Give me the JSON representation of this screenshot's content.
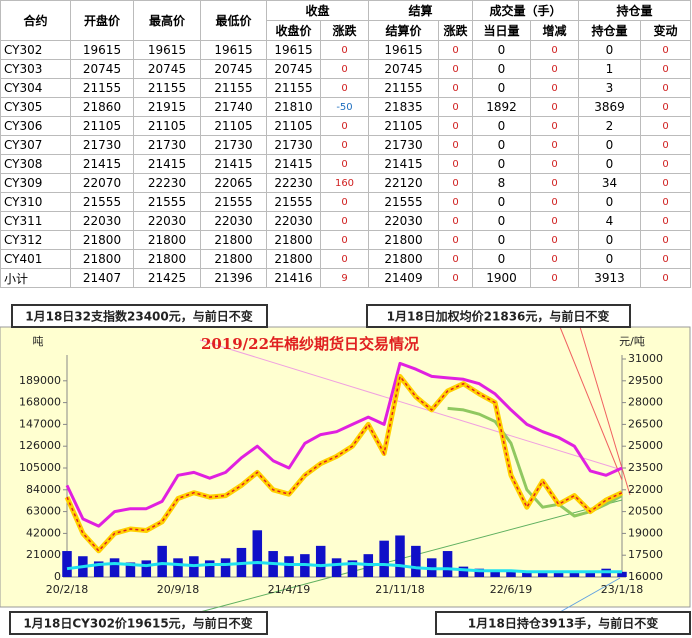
{
  "table": {
    "header": [
      "合约",
      "开盘价",
      "最高价",
      "最低价",
      "收盘",
      "结算",
      "成交量（手）",
      "持仓量"
    ],
    "subheader": [
      "收盘价",
      "涨跌",
      "结算价",
      "涨跌",
      "当日量",
      "增减",
      "持仓量",
      "变动"
    ],
    "rows": [
      [
        "CY302",
        19615,
        19615,
        19615,
        19615,
        0,
        19615,
        0,
        0,
        0,
        0,
        0
      ],
      [
        "CY303",
        20745,
        20745,
        20745,
        20745,
        0,
        20745,
        0,
        0,
        0,
        1,
        0
      ],
      [
        "CY304",
        21155,
        21155,
        21155,
        21155,
        0,
        21155,
        0,
        0,
        0,
        3,
        0
      ],
      [
        "CY305",
        21860,
        21915,
        21740,
        21810,
        -50,
        21835,
        0,
        1892,
        0,
        3869,
        0
      ],
      [
        "CY306",
        21105,
        21105,
        21105,
        21105,
        0,
        21105,
        0,
        0,
        0,
        2,
        0
      ],
      [
        "CY307",
        21730,
        21730,
        21730,
        21730,
        0,
        21730,
        0,
        0,
        0,
        0,
        0
      ],
      [
        "CY308",
        21415,
        21415,
        21415,
        21415,
        0,
        21415,
        0,
        0,
        0,
        0,
        0
      ],
      [
        "CY309",
        22070,
        22230,
        22065,
        22230,
        160,
        22120,
        0,
        8,
        0,
        34,
        0
      ],
      [
        "CY310",
        21555,
        21555,
        21555,
        21555,
        0,
        21555,
        0,
        0,
        0,
        0,
        0
      ],
      [
        "CY311",
        22030,
        22030,
        22030,
        22030,
        0,
        22030,
        0,
        0,
        0,
        4,
        0
      ],
      [
        "CY312",
        21800,
        21800,
        21800,
        21800,
        0,
        21800,
        0,
        0,
        0,
        0,
        0
      ],
      [
        "CY401",
        21800,
        21800,
        21800,
        21800,
        0,
        21800,
        0,
        0,
        0,
        0,
        0
      ],
      [
        "小计",
        21407,
        21425,
        21396,
        21416,
        9,
        21409,
        0,
        1900,
        0,
        3913,
        0
      ]
    ]
  },
  "notes": [
    "1月18日32支指数23400元，与前日不变",
    "1月18日加权均价21836元，与前日不变",
    "1月18日CY302价19615元，与前日不变",
    "1月18日持仓3913手，与前日不变"
  ],
  "chart_data": {
    "type": "combo",
    "title": "2019/22年棉纱期货日交易情况",
    "y_label": "吨",
    "y2_label": "元/吨",
    "categories": [
      "20/2/18",
      null,
      null,
      null,
      null,
      null,
      null,
      "20/9/18",
      null,
      null,
      null,
      null,
      null,
      null,
      "21/4/19",
      null,
      null,
      null,
      null,
      null,
      null,
      "21/11/18",
      null,
      null,
      null,
      null,
      null,
      null,
      "22/6/19",
      null,
      null,
      null,
      null,
      null,
      null,
      "23/1/18"
    ],
    "ylim": [
      0,
      210000
    ],
    "yticks": [
      0,
      21000,
      42000,
      63000,
      84000,
      105000,
      126000,
      147000,
      168000,
      189000
    ],
    "y2lim": [
      16000,
      31000
    ],
    "y2ticks": [
      16000,
      17500,
      19000,
      20500,
      22000,
      23500,
      25000,
      26500,
      28000,
      29500,
      31000
    ],
    "series": [
      {
        "type": "bar",
        "color": "#1010c8",
        "values": [
          25000,
          20000,
          15000,
          18000,
          14000,
          16000,
          30000,
          18000,
          20000,
          16000,
          18000,
          28000,
          45000,
          25000,
          20000,
          22000,
          30000,
          18000,
          16000,
          22000,
          35000,
          40000,
          30000,
          18000,
          25000,
          10000,
          8000,
          6000,
          5000,
          5000,
          6000,
          6000,
          5000,
          6000,
          8000,
          5000
        ]
      },
      {
        "type": "line",
        "color": "#20e0f0",
        "values": [
          8000,
          10000,
          12000,
          13000,
          12000,
          11000,
          13000,
          12000,
          11000,
          12000,
          12000,
          13000,
          14000,
          13000,
          12000,
          12000,
          11000,
          12000,
          13000,
          12000,
          12000,
          11000,
          9000,
          8000,
          8000,
          7000,
          6000,
          6000,
          6000,
          5000,
          5000,
          5000,
          5000,
          5000,
          5000,
          5000
        ]
      },
      {
        "type": "line",
        "axis": "y2",
        "color": "#e020e0",
        "values": [
          22300,
          20000,
          19500,
          20500,
          20700,
          20700,
          21200,
          23000,
          23200,
          22800,
          23200,
          24200,
          25000,
          24000,
          23500,
          25200,
          25800,
          26000,
          26500,
          27000,
          26500,
          30700,
          30300,
          29800,
          29700,
          29600,
          29300,
          28600,
          27500,
          26500,
          26000,
          25600,
          25000,
          23300,
          23000,
          23500
        ]
      },
      {
        "type": "line",
        "axis": "y2",
        "color": "#90c860",
        "values": [
          null,
          null,
          null,
          null,
          null,
          null,
          null,
          null,
          null,
          null,
          null,
          null,
          null,
          null,
          null,
          null,
          null,
          null,
          null,
          null,
          null,
          null,
          null,
          null,
          27600,
          27500,
          27200,
          26700,
          25200,
          22000,
          20800,
          21000,
          20200,
          20500,
          21000,
          21600
        ]
      },
      {
        "type": "line",
        "axis": "y2",
        "color": "#ffd000",
        "edge_color": "#e02020",
        "values": [
          21500,
          19000,
          17800,
          19000,
          19300,
          19200,
          19800,
          21400,
          21800,
          21500,
          21600,
          22300,
          23200,
          22000,
          21700,
          23000,
          23800,
          24300,
          25000,
          26500,
          24500,
          29800,
          28400,
          27500,
          28800,
          29300,
          28600,
          28000,
          23000,
          20800,
          22600,
          21000,
          21600,
          20500,
          21300,
          21800
        ]
      }
    ]
  }
}
